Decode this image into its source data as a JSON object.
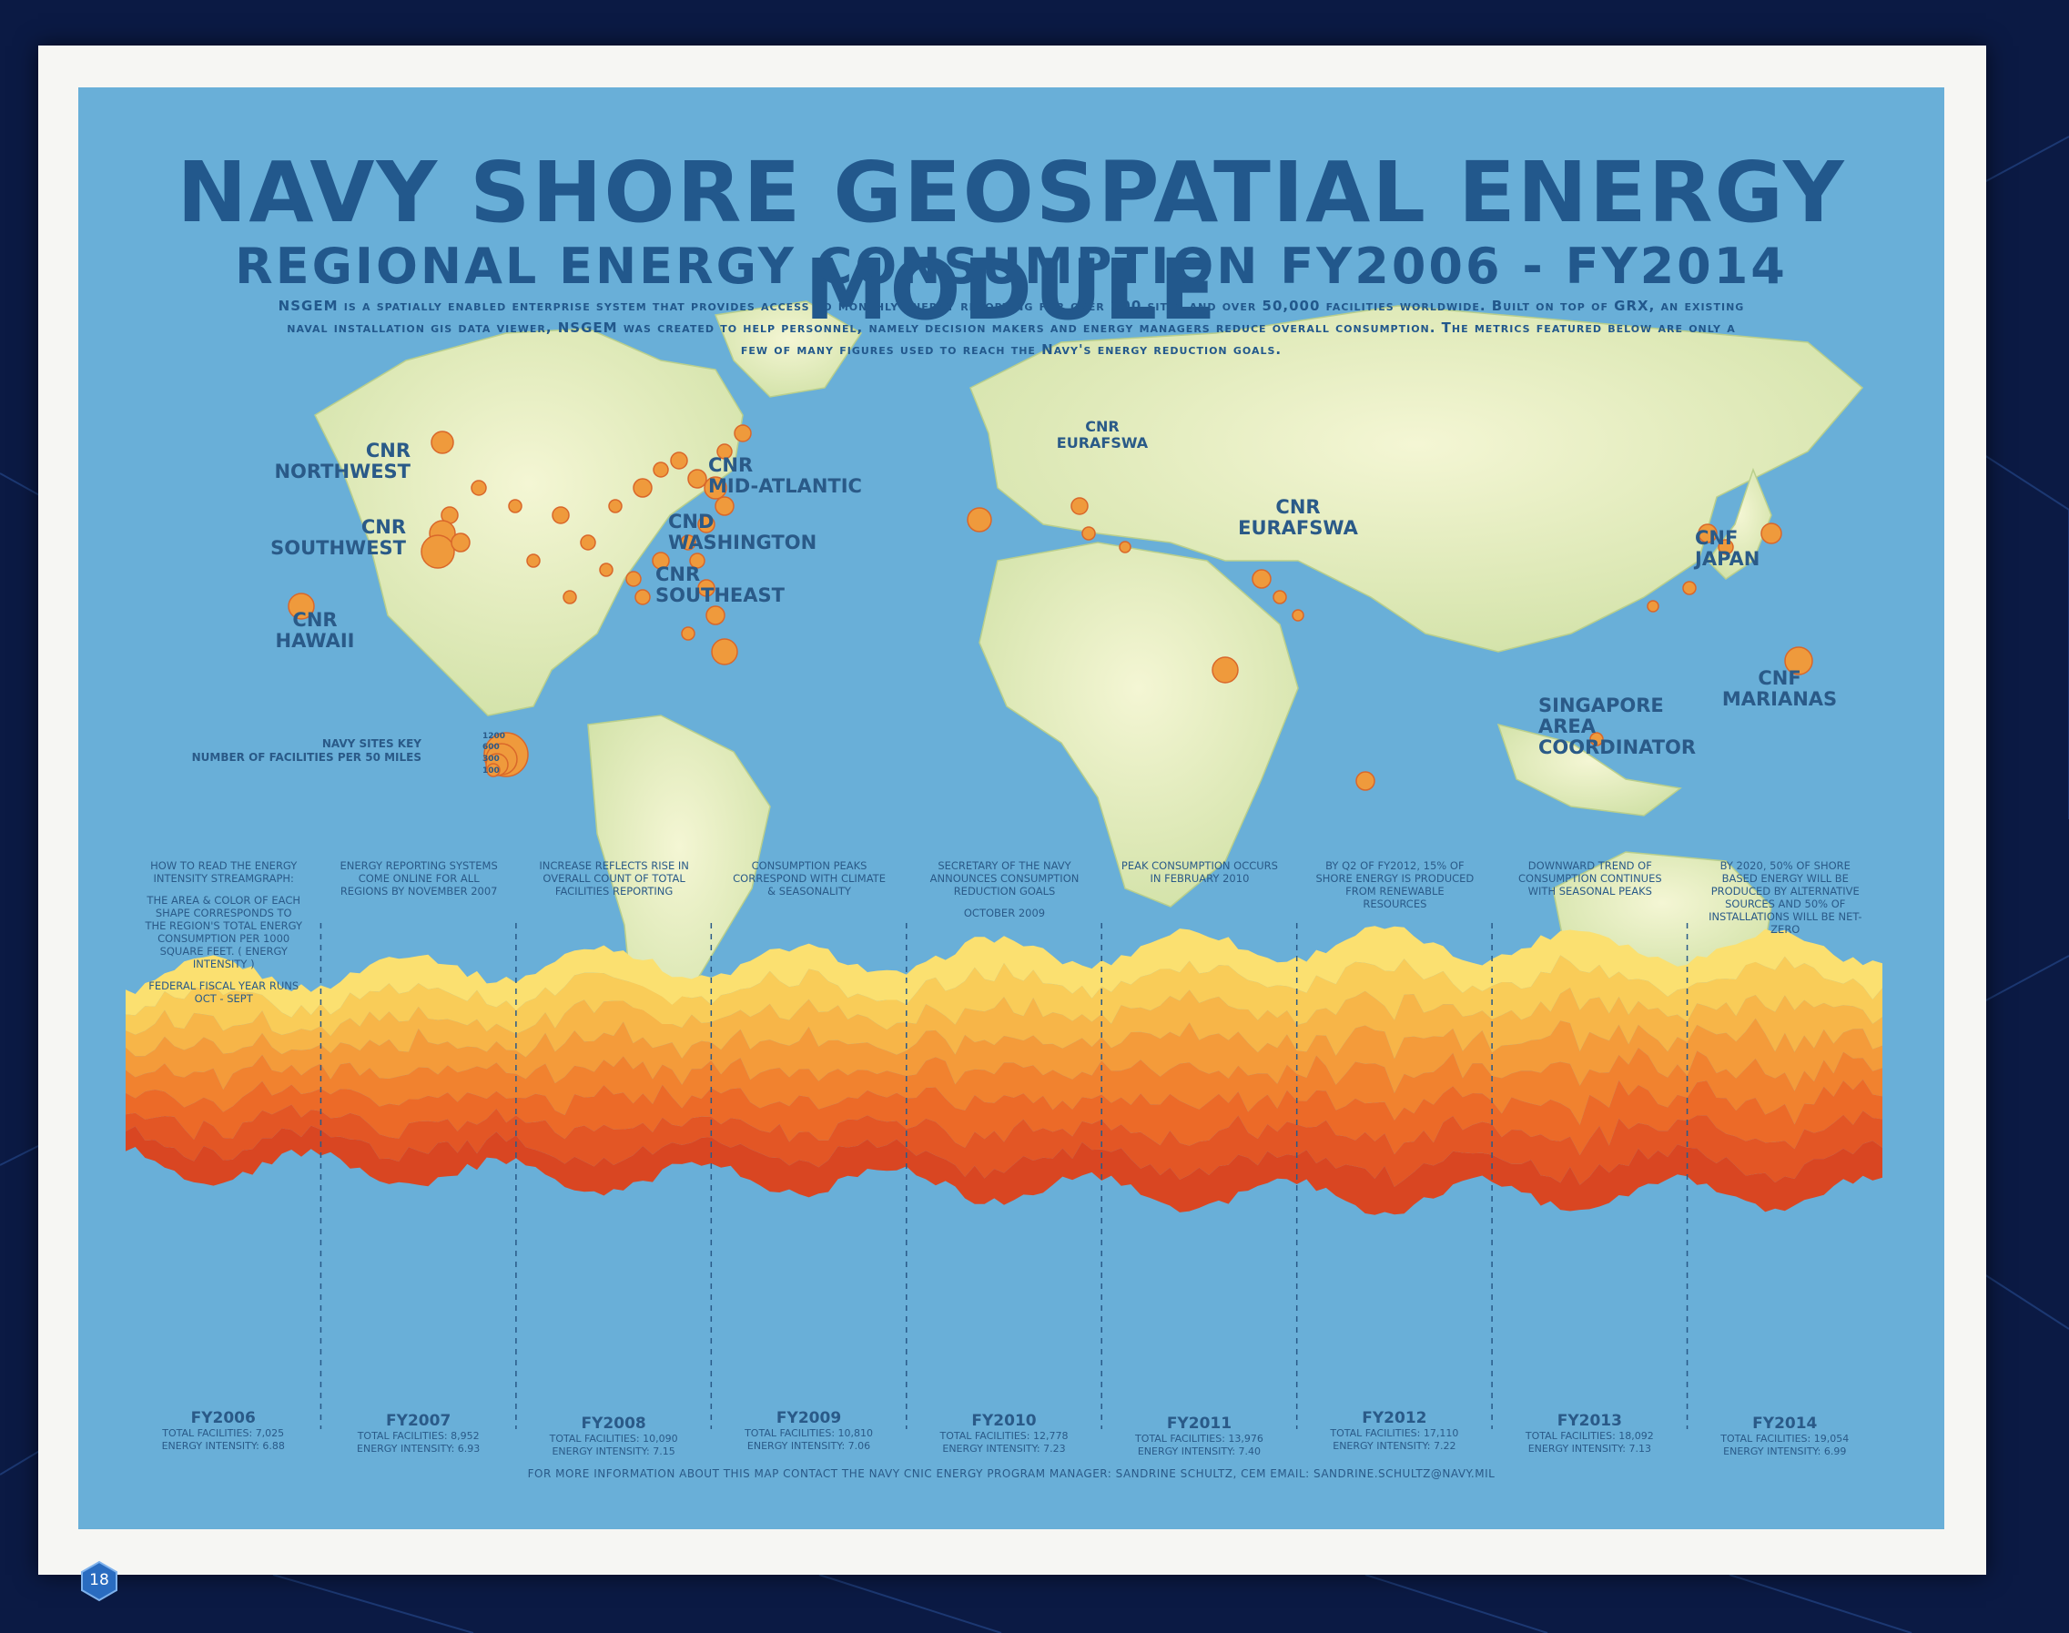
{
  "title": "NAVY SHORE GEOSPATIAL ENERGY MODULE",
  "subtitle": "REGIONAL ENERGY CONSUMPTION FY2006 - FY2014",
  "intro": {
    "line1": "NSGEM is a spatially enabled enterprise system that provides access to monthly energy reporting for over 200 sites and over 50,000 facilities worldwide. Built on top of GRX, an existing",
    "line2": "naval installation gis data viewer, NSGEM was created to help personnel, namely decision makers and energy managers reduce overall consumption. The metrics featured below are only a",
    "line3": "few of many figures used to reach the Navy's energy reduction goals."
  },
  "regions": {
    "northwest": {
      "line1": "CNR",
      "line2": "NORTHWEST"
    },
    "southwest": {
      "line1": "CNR",
      "line2": "SOUTHWEST"
    },
    "hawaii": {
      "line1": "CNR",
      "line2": "HAWAII"
    },
    "mid_atlantic": {
      "line1": "CNR",
      "line2": "MID-ATLANTIC"
    },
    "washington": {
      "line1": "CND",
      "line2": "WASHINGTON"
    },
    "southeast": {
      "line1": "CNR",
      "line2": "SOUTHEAST"
    },
    "eurafswa_europe": {
      "line1": "CNR",
      "line2": "EURAFSWA"
    },
    "eurafswa_asia": {
      "line1": "CNR",
      "line2": "EURAFSWA"
    },
    "japan": {
      "line1": "CNF",
      "line2": "JAPAN"
    },
    "marianas": {
      "line1": "CNF",
      "line2": "MARIANAS"
    },
    "singapore": {
      "line1": "SINGAPORE",
      "line2": "AREA",
      "line3": "COORDINATOR"
    }
  },
  "sites_key": {
    "line1": "NAVY SITES KEY",
    "line2": "NUMBER OF FACILITIES PER 50 MILES",
    "values": [
      "1200",
      "600",
      "300",
      "100"
    ]
  },
  "annotations": [
    {
      "p1": "How to read the energy intensity streamgraph:",
      "p2": "The area & color of each shape corresponds to the region's total energy consumption per 1000 square feet. ( energy intensity )",
      "p3": "Federal fiscal year runs Oct - Sept"
    },
    {
      "p1": "Energy reporting systems come online for all regions by November 2007"
    },
    {
      "p1": "Increase reflects rise in overall count of total facilities reporting"
    },
    {
      "p1": "Consumption peaks correspond with climate & seasonality"
    },
    {
      "p1": "Secretary of the Navy announces consumption reduction goals",
      "p2": "October 2009"
    },
    {
      "p1": "Peak consumption occurs in February 2010"
    },
    {
      "p1": "By Q2 of FY2012, 15% of shore energy is produced from renewable resources"
    },
    {
      "p1": "Downward trend of consumption continues with seasonal peaks"
    },
    {
      "p1": "By 2020, 50% of shore based energy will be produced by alternative sources and 50% of installations will be net-zero"
    }
  ],
  "chart_data": {
    "type": "area",
    "categories": [
      "FY2006",
      "FY2007",
      "FY2008",
      "FY2009",
      "FY2010",
      "FY2011",
      "FY2012",
      "FY2013",
      "FY2014"
    ],
    "total_facilities_label": "TOTAL FACILITIES:",
    "energy_intensity_label": "ENERGY INTENSITY:",
    "total_facilities": [
      "7,025",
      "8,952",
      "10,090",
      "10,810",
      "12,778",
      "13,976",
      "17,110",
      "18,092",
      "19,054"
    ],
    "energy_intensity": [
      "6.88",
      "6.93",
      "7.15",
      "7.06",
      "7.23",
      "7.40",
      "7.22",
      "7.13",
      "6.99"
    ],
    "total_facilities_values": [
      7025,
      8952,
      10090,
      10810,
      12778,
      13976,
      17110,
      18092,
      19054
    ],
    "energy_intensity_values": [
      6.88,
      6.93,
      7.15,
      7.06,
      7.23,
      7.4,
      7.22,
      7.13,
      6.99
    ],
    "layer_colors": [
      "#fbe070",
      "#f9cc58",
      "#f7b548",
      "#f49b3a",
      "#f1822f",
      "#ec6a28",
      "#e35625",
      "#d94622"
    ]
  },
  "footer": "FOR MORE INFORMATION ABOUT THIS MAP CONTACT THE NAVY CNIC ENERGY PROGRAM MANAGER: SANDRINE SCHULTZ, CEM EMAIL: SANDRINE.SCHULTZ@NAVY.MIL",
  "page_number": "18",
  "colors": {
    "ocean": "#69afd8",
    "land": "#dfe9b8",
    "title": "#22588c",
    "marker": "#ef9a3c"
  }
}
